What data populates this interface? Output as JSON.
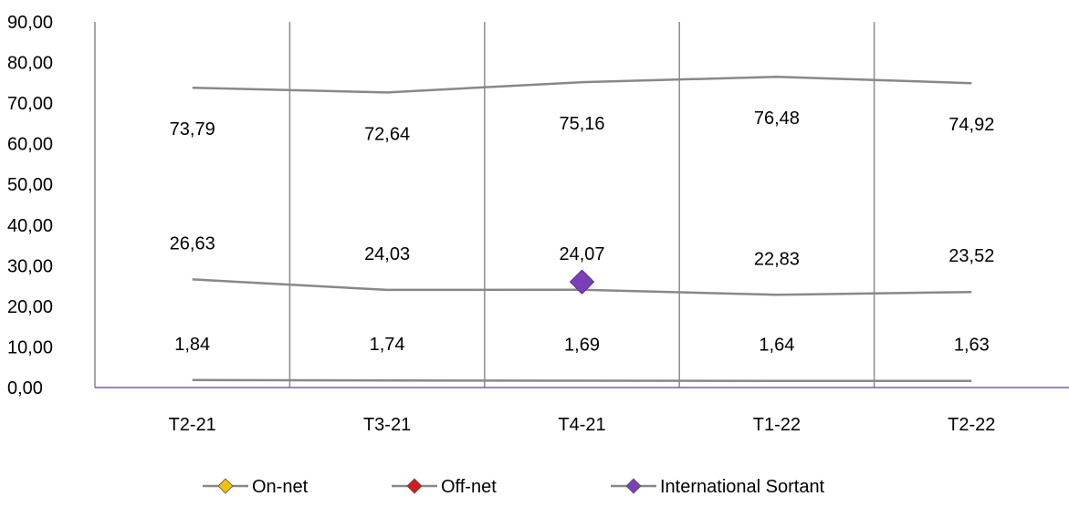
{
  "chart_data": {
    "type": "line",
    "categories": [
      "T2-21",
      "T3-21",
      "T4-21",
      "T1-22",
      "T2-22"
    ],
    "ylim": [
      0,
      90
    ],
    "yticks": [
      "0,00",
      "10,00",
      "20,00",
      "30,00",
      "40,00",
      "50,00",
      "60,00",
      "70,00",
      "80,00",
      "90,00"
    ],
    "grid": "vertical",
    "legend_position": "bottom",
    "series": [
      {
        "name": "On-net",
        "marker_color": "#f2c200",
        "values": [
          73.79,
          72.64,
          75.16,
          76.48,
          74.92
        ],
        "labels": [
          "73,79",
          "72,64",
          "75,16",
          "76,48",
          "74,92"
        ]
      },
      {
        "name": "Off-net",
        "marker_color": "#d01c1c",
        "values": [
          26.63,
          24.03,
          24.07,
          22.83,
          23.52
        ],
        "labels": [
          "26,63",
          "24,03",
          "24,07",
          "22,83",
          "23,52"
        ]
      },
      {
        "name": "International Sortant",
        "marker_color": "#7b3fb8",
        "values": [
          1.84,
          1.74,
          1.69,
          1.64,
          1.63
        ],
        "labels": [
          "1,84",
          "1,74",
          "1,69",
          "1,64",
          "1,63"
        ]
      }
    ],
    "annotations": [
      {
        "type": "diamond-marker",
        "color": "#7b3fb8",
        "x": "T4-21",
        "y": 26
      }
    ],
    "line_color": "#888888",
    "axis_color": "#7a5aa8"
  }
}
